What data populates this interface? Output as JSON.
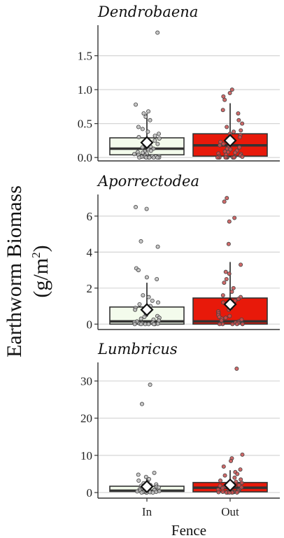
{
  "chart_data": {
    "type": "box",
    "ylabel_line1": "Earthworm Biomass",
    "ylabel_line2_base": "(g/m",
    "ylabel_line2_sup": "2",
    "ylabel_line2_end": ")",
    "xlabel": "Fence",
    "categories": [
      "In",
      "Out"
    ],
    "colors": {
      "In": "#f3fbec",
      "Out": "#e8190a"
    },
    "point_colors": {
      "In": "#bdbdbd",
      "Out": "#c85050"
    },
    "panels": [
      {
        "title": "Dendrobaena",
        "ylim": [
          -0.05,
          1.95
        ],
        "yticks": [
          0.0,
          0.5,
          1.0,
          1.5
        ],
        "ytick_labels": [
          "0.0",
          "0.5",
          "1.0",
          "1.5"
        ],
        "boxes": [
          {
            "category": "In",
            "q1": 0.04,
            "median": 0.13,
            "q3": 0.29,
            "whisker_low": 0.0,
            "whisker_high": 0.65,
            "mean": 0.22
          },
          {
            "category": "Out",
            "q1": 0.02,
            "median": 0.18,
            "q3": 0.35,
            "whisker_low": 0.0,
            "whisker_high": 0.8,
            "mean": 0.25
          }
        ],
        "points": [
          {
            "category": "In",
            "values": [
              1.84,
              0.78,
              0.68,
              0.65,
              0.6,
              0.55,
              0.45,
              0.42,
              0.38,
              0.35,
              0.32,
              0.3,
              0.28,
              0.25,
              0.22,
              0.2,
              0.18,
              0.16,
              0.15,
              0.13,
              0.12,
              0.1,
              0.09,
              0.08,
              0.07,
              0.06,
              0.05,
              0.04,
              0.03,
              0.02,
              0.02,
              0.01,
              0.01,
              0.0,
              0.0,
              0.0,
              0.0,
              0.0,
              0.0,
              0.0
            ]
          },
          {
            "category": "Out",
            "values": [
              1.0,
              0.95,
              0.9,
              0.85,
              0.7,
              0.65,
              0.55,
              0.5,
              0.45,
              0.4,
              0.38,
              0.35,
              0.33,
              0.3,
              0.28,
              0.25,
              0.23,
              0.2,
              0.18,
              0.16,
              0.15,
              0.13,
              0.12,
              0.1,
              0.09,
              0.08,
              0.07,
              0.06,
              0.05,
              0.04,
              0.03,
              0.02,
              0.02,
              0.01,
              0.01,
              0.0,
              0.0,
              0.0,
              0.0,
              0.0,
              0.0,
              0.0,
              0.0,
              0.0
            ]
          }
        ]
      },
      {
        "title": "Aporrectodea",
        "ylim": [
          -0.3,
          7.2
        ],
        "yticks": [
          0,
          2,
          4,
          6
        ],
        "ytick_labels": [
          "0",
          "2",
          "4",
          "6"
        ],
        "boxes": [
          {
            "category": "In",
            "q1": 0.0,
            "median": 0.15,
            "q3": 0.95,
            "whisker_low": 0.0,
            "whisker_high": 2.3,
            "mean": 0.8
          },
          {
            "category": "Out",
            "q1": 0.0,
            "median": 0.15,
            "q3": 1.45,
            "whisker_low": 0.0,
            "whisker_high": 3.45,
            "mean": 1.1
          }
        ],
        "points": [
          {
            "category": "In",
            "values": [
              6.5,
              6.4,
              4.6,
              4.3,
              3.1,
              3.0,
              2.6,
              2.5,
              1.6,
              1.5,
              1.3,
              1.2,
              1.1,
              1.0,
              0.9,
              0.8,
              0.7,
              0.6,
              0.5,
              0.45,
              0.4,
              0.35,
              0.3,
              0.25,
              0.2,
              0.15,
              0.1,
              0.08,
              0.05,
              0.03,
              0.02,
              0.0,
              0.0,
              0.0,
              0.0,
              0.0,
              0.0
            ]
          },
          {
            "category": "Out",
            "values": [
              7.0,
              6.8,
              5.9,
              5.7,
              4.45,
              3.3,
              2.9,
              2.8,
              2.5,
              2.3,
              2.0,
              1.8,
              1.6,
              1.5,
              1.4,
              1.3,
              1.2,
              1.1,
              1.0,
              0.9,
              0.8,
              0.7,
              0.6,
              0.5,
              0.45,
              0.4,
              0.35,
              0.3,
              0.25,
              0.2,
              0.15,
              0.1,
              0.08,
              0.05,
              0.03,
              0.0,
              0.0,
              0.0,
              0.0,
              0.0
            ]
          }
        ]
      },
      {
        "title": "Lumbricus",
        "ylim": [
          -1.5,
          35
        ],
        "yticks": [
          0,
          10,
          20,
          30
        ],
        "ytick_labels": [
          "0",
          "10",
          "20",
          "30"
        ],
        "boxes": [
          {
            "category": "In",
            "q1": 0.3,
            "median": 0.5,
            "q3": 1.7,
            "whisker_low": 0.0,
            "whisker_high": 4.0,
            "mean": 1.6
          },
          {
            "category": "Out",
            "q1": 0.2,
            "median": 1.3,
            "q3": 2.7,
            "whisker_low": 0.0,
            "whisker_high": 6.0,
            "mean": 2.0
          }
        ],
        "points": [
          {
            "category": "In",
            "values": [
              29.0,
              23.8,
              5.3,
              4.8,
              4.2,
              3.6,
              3.2,
              2.8,
              2.5,
              2.2,
              2.0,
              1.8,
              1.6,
              1.4,
              1.2,
              1.0,
              0.9,
              0.8,
              0.7,
              0.6,
              0.5,
              0.4,
              0.3,
              0.2,
              0.15,
              0.1,
              0.05,
              0.0,
              0.0,
              0.0,
              0.0
            ]
          },
          {
            "category": "Out",
            "values": [
              33.3,
              10.2,
              9.2,
              8.5,
              7.0,
              6.2,
              5.5,
              5.0,
              4.6,
              4.0,
              3.5,
              3.2,
              2.9,
              2.6,
              2.3,
              2.0,
              1.8,
              1.6,
              1.4,
              1.2,
              1.0,
              0.9,
              0.8,
              0.7,
              0.6,
              0.5,
              0.4,
              0.3,
              0.25,
              0.2,
              0.15,
              0.1,
              0.05,
              0.0,
              0.0,
              0.0,
              0.0,
              0.0
            ]
          }
        ]
      }
    ]
  }
}
